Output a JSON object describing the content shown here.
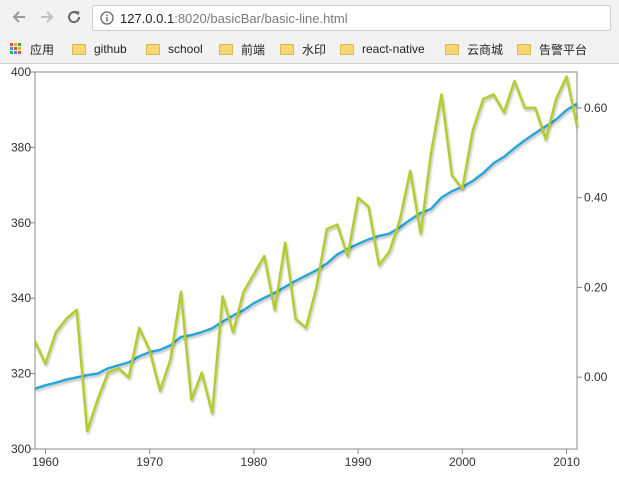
{
  "browser": {
    "url_host": "127.0.0.1",
    "url_rest": ":8020/basicBar/basic-line.html",
    "bookmarks": [
      {
        "label": "应用",
        "icon": "apps-grid-icon"
      },
      {
        "label": "github",
        "icon": "folder-icon"
      },
      {
        "label": "school",
        "icon": "folder-icon"
      },
      {
        "label": "前端",
        "icon": "folder-icon"
      },
      {
        "label": "水印",
        "icon": "folder-icon"
      },
      {
        "label": "react-native",
        "icon": "folder-icon"
      },
      {
        "label": "云商城",
        "icon": "folder-icon"
      },
      {
        "label": "告警平台",
        "icon": "folder-icon"
      }
    ]
  },
  "colors": {
    "co2_line": "#2aa6d8",
    "anomaly_line": "#b5cc2e",
    "zero_line": "#444444",
    "axis": "#888888"
  },
  "chart_data": {
    "type": "line",
    "title": "",
    "x_ticks": [
      "1960",
      "1970",
      "1980",
      "1990",
      "2000",
      "2010"
    ],
    "xlim": [
      1959,
      2011
    ],
    "y_left": {
      "ticks": [
        "300",
        "320",
        "340",
        "360",
        "380",
        "400"
      ],
      "ylim": [
        300,
        400
      ]
    },
    "y_right": {
      "ticks": [
        "0.00",
        "0.20",
        "0.40",
        "0.60"
      ],
      "ylim": [
        -0.16,
        0.68
      ]
    },
    "reference_line": {
      "axis": "right",
      "value": 0
    },
    "series": [
      {
        "axis": "left",
        "x": [
          1959,
          1960,
          1961,
          1962,
          1963,
          1964,
          1965,
          1966,
          1967,
          1968,
          1969,
          1970,
          1971,
          1972,
          1973,
          1974,
          1975,
          1976,
          1977,
          1978,
          1979,
          1980,
          1981,
          1982,
          1983,
          1984,
          1985,
          1986,
          1987,
          1988,
          1989,
          1990,
          1991,
          1992,
          1993,
          1994,
          1995,
          1996,
          1997,
          1998,
          1999,
          2000,
          2001,
          2002,
          2003,
          2004,
          2005,
          2006,
          2007,
          2008,
          2009,
          2010,
          2011
        ],
        "values": [
          316.0,
          316.9,
          317.6,
          318.4,
          319.0,
          319.6,
          320.0,
          321.4,
          322.2,
          323.0,
          324.6,
          325.7,
          326.3,
          327.5,
          329.7,
          330.2,
          331.0,
          332.0,
          333.8,
          335.4,
          336.8,
          338.7,
          340.1,
          341.4,
          343.0,
          344.6,
          346.0,
          347.4,
          349.2,
          351.6,
          353.1,
          354.4,
          355.6,
          356.5,
          357.1,
          358.8,
          360.8,
          362.6,
          363.7,
          366.7,
          368.4,
          369.5,
          371.1,
          373.2,
          375.8,
          377.5,
          379.8,
          381.9,
          383.8,
          385.6,
          387.4,
          389.9,
          391.6
        ]
      },
      {
        "axis": "right",
        "x": [
          1959,
          1960,
          1961,
          1962,
          1963,
          1964,
          1965,
          1966,
          1967,
          1968,
          1969,
          1970,
          1971,
          1972,
          1973,
          1974,
          1975,
          1976,
          1977,
          1978,
          1979,
          1980,
          1981,
          1982,
          1983,
          1984,
          1985,
          1986,
          1987,
          1988,
          1989,
          1990,
          1991,
          1992,
          1993,
          1994,
          1995,
          1996,
          1997,
          1998,
          1999,
          2000,
          2001,
          2002,
          2003,
          2004,
          2005,
          2006,
          2007,
          2008,
          2009,
          2010,
          2011
        ],
        "values": [
          0.08,
          0.03,
          0.1,
          0.13,
          0.15,
          -0.12,
          -0.05,
          0.01,
          0.02,
          0.0,
          0.11,
          0.06,
          -0.03,
          0.04,
          0.19,
          -0.05,
          0.01,
          -0.08,
          0.18,
          0.1,
          0.19,
          0.23,
          0.27,
          0.15,
          0.3,
          0.13,
          0.11,
          0.2,
          0.33,
          0.34,
          0.27,
          0.4,
          0.38,
          0.25,
          0.28,
          0.35,
          0.46,
          0.32,
          0.5,
          0.63,
          0.45,
          0.42,
          0.55,
          0.62,
          0.63,
          0.59,
          0.66,
          0.6,
          0.6,
          0.53,
          0.62,
          0.67,
          0.56
        ]
      }
    ]
  }
}
